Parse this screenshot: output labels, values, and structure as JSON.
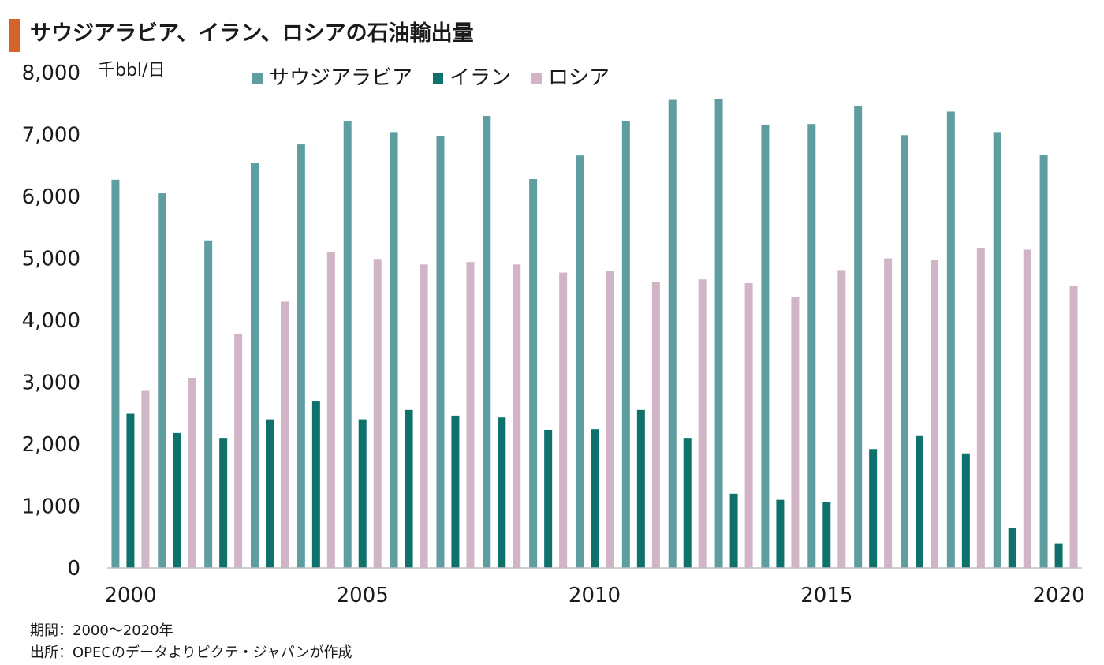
{
  "title": "サウジアラビア、イラン、ロシアの石油輸出量",
  "colors": {
    "title_accent": "#d4622b",
    "axis": "#bfbfbf"
  },
  "unit_label": "千bbl/日",
  "chart_data": {
    "type": "bar",
    "title": "サウジアラビア、イラン、ロシアの石油輸出量",
    "ylabel": "千bbl/日",
    "xlabel": "",
    "ylim": [
      0,
      8000
    ],
    "yticks": [
      0,
      1000,
      2000,
      3000,
      4000,
      5000,
      6000,
      7000,
      8000
    ],
    "ytick_labels": [
      "0",
      "1,000",
      "2,000",
      "3,000",
      "4,000",
      "5,000",
      "6,000",
      "7,000",
      "8,000"
    ],
    "xtick_labels": [
      "2000",
      "2005",
      "2010",
      "2015",
      "2020"
    ],
    "categories": [
      2000,
      2001,
      2002,
      2003,
      2004,
      2005,
      2006,
      2007,
      2008,
      2009,
      2010,
      2011,
      2012,
      2013,
      2014,
      2015,
      2016,
      2017,
      2018,
      2019,
      2020
    ],
    "grid": false,
    "legend_position": "top",
    "series": [
      {
        "name": "サウジアラビア",
        "color": "#5f9ea0",
        "values": [
          6270,
          6050,
          5290,
          6540,
          6840,
          7210,
          7040,
          6970,
          7300,
          6280,
          6660,
          7220,
          7560,
          7570,
          7160,
          7170,
          7460,
          6990,
          7370,
          7040,
          6670
        ]
      },
      {
        "name": "イラン",
        "color": "#0f716c",
        "values": [
          2490,
          2180,
          2100,
          2400,
          2700,
          2400,
          2550,
          2460,
          2430,
          2230,
          2240,
          2550,
          2100,
          1200,
          1100,
          1060,
          1920,
          2130,
          1850,
          650,
          400
        ]
      },
      {
        "name": "ロシア",
        "color": "#d1b4c5",
        "values": [
          2860,
          3070,
          3780,
          4300,
          5100,
          4990,
          4900,
          4940,
          4900,
          4770,
          4800,
          4620,
          4660,
          4600,
          4380,
          4810,
          5000,
          4980,
          5170,
          5140,
          4560
        ]
      }
    ]
  },
  "notes": {
    "period": "期間：2000～2020年",
    "source": "出所：OPECのデータよりピクテ・ジャパンが作成"
  }
}
